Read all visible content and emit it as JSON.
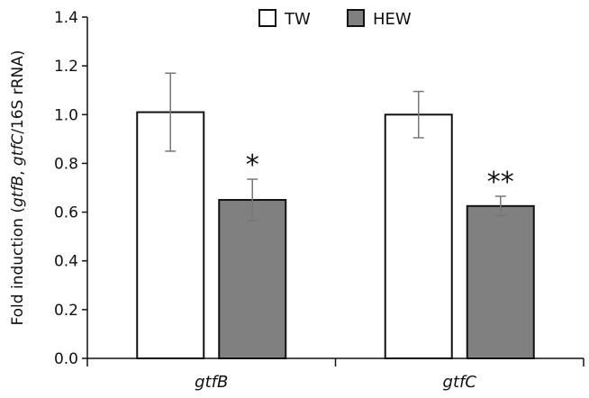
{
  "chart_data": {
    "type": "bar",
    "categories": [
      "gtfB",
      "gtfC"
    ],
    "series": [
      {
        "name": "TW",
        "color": "#ffffff",
        "values": [
          1.01,
          1.0
        ],
        "errors": [
          0.16,
          0.095
        ]
      },
      {
        "name": "HEW",
        "color": "#808080",
        "values": [
          0.65,
          0.625
        ],
        "errors": [
          0.085,
          0.04
        ]
      }
    ],
    "significance": [
      {
        "category": "gtfB",
        "series": "HEW",
        "label": "*"
      },
      {
        "category": "gtfC",
        "series": "HEW",
        "label": "**"
      }
    ],
    "ylabel": {
      "prefix": "Fold induction (",
      "gene1": "gtfB",
      "sep": ", ",
      "gene2": "gtfC",
      "suffix": "/16S rRNA)"
    },
    "ylim": [
      0,
      1.4
    ],
    "yticks": [
      "0.0",
      "0.2",
      "0.4",
      "0.6",
      "0.8",
      "1.0",
      "1.2",
      "1.4"
    ],
    "ytick_values": [
      0,
      0.2,
      0.4,
      0.6,
      0.8,
      1.0,
      1.2,
      1.4
    ],
    "legend_position": "top-center",
    "grid": false
  }
}
